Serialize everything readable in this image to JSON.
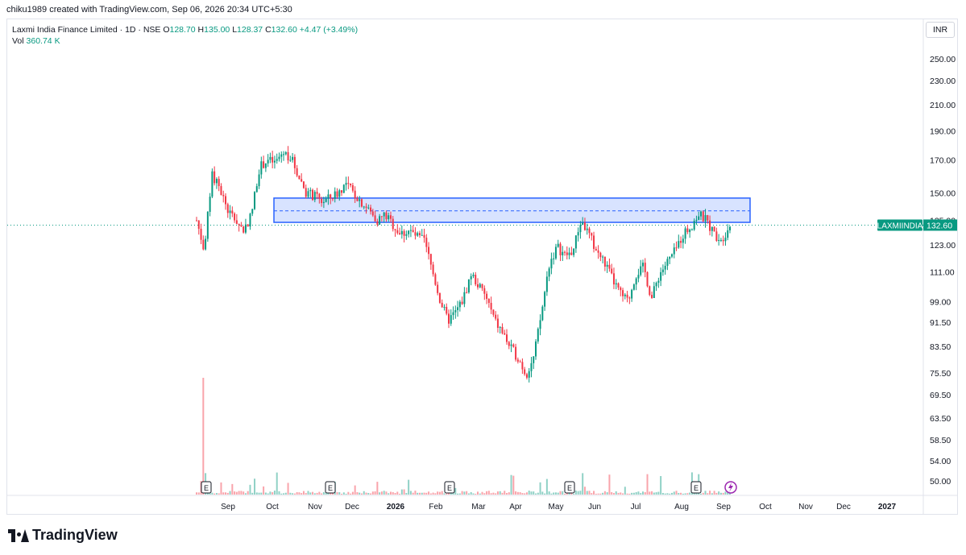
{
  "caption": "chiku1989 created with TradingView.com, Sep 06, 2026 20:34 UTC+5:30",
  "legend": {
    "title": "Laxmi India Finance Limited · 1D · NSE",
    "open_label": "O",
    "open": "128.70",
    "high_label": "H",
    "high": "135.00",
    "low_label": "L",
    "low": "128.37",
    "close_label": "C",
    "close": "132.60",
    "change": "+4.47 (+3.49%)",
    "vol_label": "Vol",
    "vol": "360.74 K"
  },
  "currency": "INR",
  "footer_brand": "TradingView",
  "colors": {
    "up": "#089981",
    "down": "#f23645",
    "zone_fill": "#2962ff",
    "zone_line": "#2962ff",
    "last_price_bg": "#089981"
  },
  "chart_data": {
    "type": "candlestick",
    "symbol": "LAXMIINDIA",
    "last_price": 132.6,
    "y_scale": "log",
    "y_ticks": [
      "250.00",
      "230.00",
      "210.00",
      "190.00",
      "170.00",
      "150.00",
      "135.00",
      "123.00",
      "111.00",
      "99.00",
      "91.50",
      "83.50",
      "75.50",
      "69.50",
      "63.50",
      "58.50",
      "54.00",
      "50.00"
    ],
    "x_ticks": [
      "Sep",
      "Oct",
      "Nov",
      "Dec",
      "2026",
      "Feb",
      "Mar",
      "Apr",
      "May",
      "Jun",
      "Jul",
      "Aug",
      "Sep",
      "Oct",
      "Nov",
      "Dec",
      "2027"
    ],
    "resistance_zone": {
      "top": 147,
      "bottom": 134,
      "mid": 140
    },
    "earnings_markers": [
      "E",
      "E",
      "E",
      "E",
      "E"
    ],
    "price_path": [
      [
        "Aug",
        135
      ],
      [
        "Aug",
        120
      ],
      [
        "Aug",
        160
      ],
      [
        "Aug",
        152
      ],
      [
        "Aug",
        140
      ],
      [
        "Aug",
        135
      ],
      [
        "Aug",
        130
      ],
      [
        "Sep",
        138
      ],
      [
        "Sep",
        165
      ],
      [
        "Sep",
        170
      ],
      [
        "Sep",
        168
      ],
      [
        "Sep",
        175
      ],
      [
        "Sep",
        172
      ],
      [
        "Oct",
        160
      ],
      [
        "Oct",
        150
      ],
      [
        "Oct",
        148
      ],
      [
        "Oct",
        145
      ],
      [
        "Oct",
        147
      ],
      [
        "Oct",
        150
      ],
      [
        "Nov",
        155
      ],
      [
        "Nov",
        150
      ],
      [
        "Nov",
        145
      ],
      [
        "Nov",
        140
      ],
      [
        "Nov",
        135
      ],
      [
        "Dec",
        138
      ],
      [
        "Dec",
        133
      ],
      [
        "Dec",
        128
      ],
      [
        "Dec",
        130
      ],
      [
        "Dec",
        127
      ],
      [
        "2026",
        125
      ],
      [
        "2026",
        112
      ],
      [
        "2026",
        100
      ],
      [
        "2026",
        92
      ],
      [
        "2026",
        95
      ],
      [
        "Feb",
        100
      ],
      [
        "Feb",
        110
      ],
      [
        "Feb",
        105
      ],
      [
        "Feb",
        100
      ],
      [
        "Mar",
        92
      ],
      [
        "Mar",
        88
      ],
      [
        "Mar",
        83
      ],
      [
        "Mar",
        80
      ],
      [
        "Mar",
        75
      ],
      [
        "Apr",
        80
      ],
      [
        "Apr",
        95
      ],
      [
        "Apr",
        115
      ],
      [
        "Apr",
        122
      ],
      [
        "Apr",
        118
      ],
      [
        "May",
        120
      ],
      [
        "May",
        135
      ],
      [
        "May",
        128
      ],
      [
        "May",
        120
      ],
      [
        "Jun",
        115
      ],
      [
        "Jun",
        108
      ],
      [
        "Jun",
        102
      ],
      [
        "Jun",
        99
      ],
      [
        "Jul",
        110
      ],
      [
        "Jul",
        113
      ],
      [
        "Jul",
        100
      ],
      [
        "Jul",
        110
      ],
      [
        "Jul",
        115
      ],
      [
        "Aug",
        120
      ],
      [
        "Aug",
        128
      ],
      [
        "Aug",
        132
      ],
      [
        "Aug",
        138
      ],
      [
        "Aug",
        135
      ],
      [
        "Sep",
        128
      ],
      [
        "Sep",
        126
      ],
      [
        "Sep",
        132.6
      ]
    ],
    "volume_spike_label": ""
  }
}
